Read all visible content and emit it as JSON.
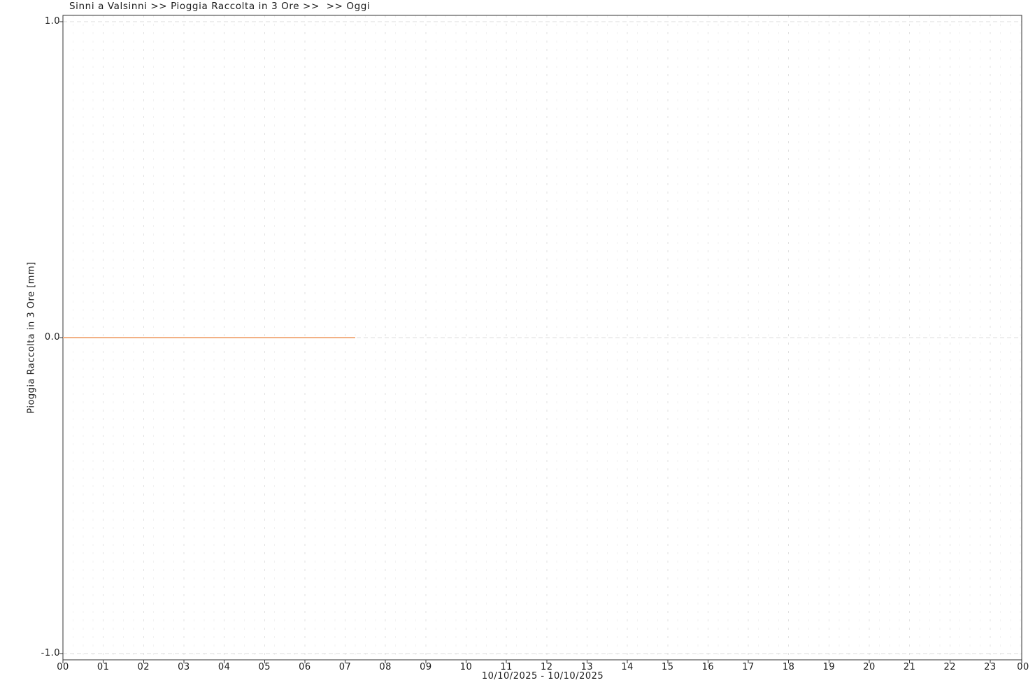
{
  "header": {
    "title": "Sinni a Valsinni >> Pioggia Raccolta in 3 Ore >>  >> Oggi"
  },
  "chart_data": {
    "type": "line",
    "title": "Sinni a Valsinni >> Pioggia Raccolta in 3 Ore >>  >> Oggi",
    "station": "Sinni a Valsinni",
    "parameter": "Pioggia Raccolta in 3 Ore",
    "period_label": "Oggi",
    "xlabel": "10/10/2025 - 10/10/2025",
    "ylabel": "Pioggia Raccolta in 3 Ore [mm]",
    "xlim_hours": [
      0,
      24
    ],
    "ylim": [
      -1.0,
      1.0
    ],
    "grid": true,
    "legend": "none",
    "x_tick_hours": [
      "00",
      "01",
      "02",
      "03",
      "04",
      "05",
      "06",
      "07",
      "08",
      "09",
      "10",
      "11",
      "12",
      "13",
      "14",
      "15",
      "16",
      "17",
      "18",
      "19",
      "20",
      "21",
      "22",
      "23",
      "00"
    ],
    "y_ticks": [
      1.0,
      0.0,
      -1.0
    ],
    "y_tick_labels": [
      "1.0",
      "0.0",
      "-1.0"
    ],
    "series": [
      {
        "name": "Pioggia Raccolta in 3 Ore [mm]",
        "color": "#f2b185",
        "points_hour_mm": [
          [
            0,
            0.0
          ],
          [
            7.25,
            0.0
          ]
        ],
        "note": "constant 0.0 mm from 00:00 to ~07:15; no data after ~07:15"
      }
    ]
  },
  "colors": {
    "background": "#ffffff",
    "text": "#1a1a1a",
    "axis_frame": "#333333",
    "grid_major_vertical": "#e2e2e2",
    "grid_minor_vertical": "#f2f2f2",
    "grid_horizontal": "#dcdcdc",
    "line": "#f2b185"
  }
}
